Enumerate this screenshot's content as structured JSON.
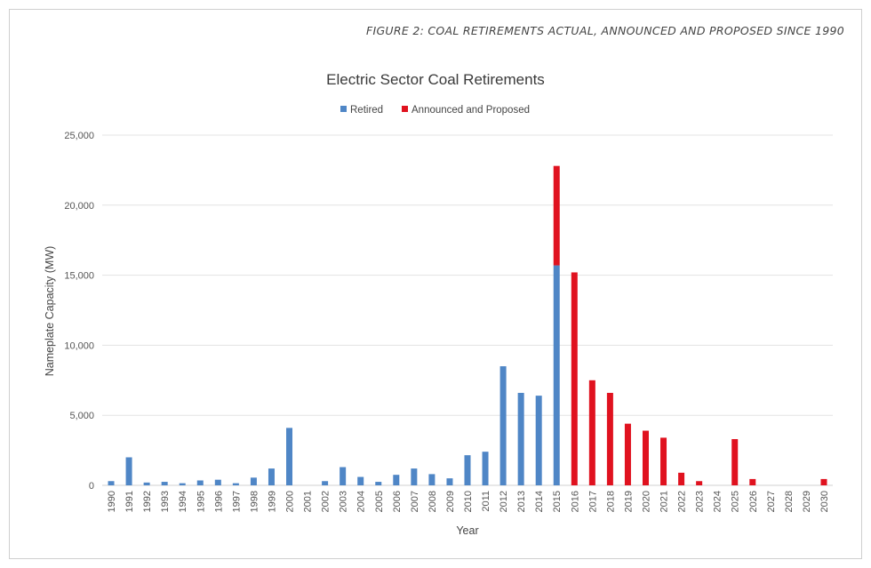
{
  "figure_caption": "FIGURE 2: COAL RETIREMENTS ACTUAL, ANNOUNCED AND PROPOSED SINCE 1990",
  "colors": {
    "retired": "#4f86c6",
    "announced": "#e0121f"
  },
  "chart_data": {
    "type": "bar",
    "stacked": true,
    "title": "Electric Sector Coal Retirements",
    "xlabel": "Year",
    "ylabel": "Nameplate Capacity (MW)",
    "ylim": [
      0,
      25000
    ],
    "yticks": [
      0,
      5000,
      10000,
      15000,
      20000,
      25000
    ],
    "ytick_labels": [
      "0",
      "5,000",
      "10,000",
      "15,000",
      "20,000",
      "25,000"
    ],
    "grid": true,
    "legend_position": "top-center",
    "categories": [
      "1990",
      "1991",
      "1992",
      "1993",
      "1994",
      "1995",
      "1996",
      "1997",
      "1998",
      "1999",
      "2000",
      "2001",
      "2002",
      "2003",
      "2004",
      "2005",
      "2006",
      "2007",
      "2008",
      "2009",
      "2010",
      "2011",
      "2012",
      "2013",
      "2014",
      "2015",
      "2016",
      "2017",
      "2018",
      "2019",
      "2020",
      "2021",
      "2022",
      "2023",
      "2024",
      "2025",
      "2026",
      "2027",
      "2028",
      "2029",
      "2030"
    ],
    "series": [
      {
        "name": "Retired",
        "values": [
          300,
          2000,
          200,
          250,
          150,
          350,
          400,
          150,
          550,
          1200,
          4100,
          0,
          300,
          1300,
          600,
          250,
          750,
          1200,
          800,
          500,
          2150,
          2400,
          8500,
          6600,
          6400,
          15700,
          0,
          0,
          0,
          0,
          0,
          0,
          0,
          0,
          0,
          0,
          0,
          0,
          0,
          0,
          0
        ]
      },
      {
        "name": "Announced and Proposed",
        "values": [
          0,
          0,
          0,
          0,
          0,
          0,
          0,
          0,
          0,
          0,
          0,
          0,
          0,
          0,
          0,
          0,
          0,
          0,
          0,
          0,
          0,
          0,
          0,
          0,
          0,
          7100,
          15200,
          7500,
          6600,
          4400,
          3900,
          3400,
          900,
          300,
          0,
          3300,
          450,
          0,
          0,
          0,
          450
        ]
      }
    ]
  }
}
